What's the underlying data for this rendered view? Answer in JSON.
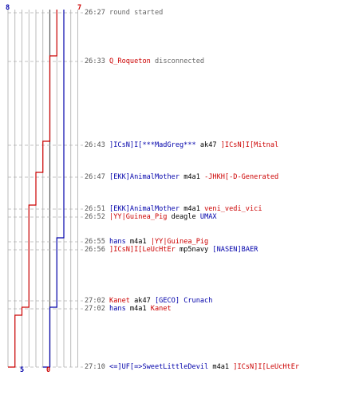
{
  "colors": {
    "team_blue": "#0000aa",
    "team_red": "#cc0000",
    "grid": "#aaaaaa",
    "dash": "#b0b0b0"
  },
  "chart_data": {
    "type": "line",
    "series": [
      {
        "color": "#0000aa",
        "start": 8,
        "end": 5,
        "values_by_event": [
          8,
          8,
          8,
          8,
          8,
          8,
          7,
          7,
          7,
          6,
          6,
          5,
          5
        ]
      },
      {
        "color": "#cc0000",
        "start": 7,
        "end": 0,
        "values_by_event": [
          7,
          6,
          5,
          4,
          3,
          3,
          3,
          3,
          3,
          2,
          1,
          1,
          0
        ]
      }
    ],
    "start_labels": {
      "blue": "8",
      "red": "7"
    },
    "end_labels": {
      "blue": "5",
      "red": "0"
    },
    "events": [
      {
        "time": "26:27",
        "parts": [
          {
            "text": "round started",
            "style": "msg"
          }
        ]
      },
      {
        "time": "26:33",
        "parts": [
          {
            "text": "Q_Roqueton",
            "style": "red"
          },
          {
            "text": " disconnected",
            "style": "msg"
          }
        ]
      },
      {
        "time": "26:43",
        "parts": [
          {
            "text": "]ICsN]I[***MadGreg***",
            "style": "blue"
          },
          {
            "text": " ak47 ",
            "style": "blk"
          },
          {
            "text": "]ICsN]I[Mitnal",
            "style": "red"
          }
        ]
      },
      {
        "time": "26:47",
        "parts": [
          {
            "text": "[EKK]AnimalMother",
            "style": "blue"
          },
          {
            "text": " m4a1 ",
            "style": "blk"
          },
          {
            "text": "-JHKH[-D-Generated",
            "style": "red"
          }
        ]
      },
      {
        "time": "26:51",
        "parts": [
          {
            "text": "[EKK]AnimalMother",
            "style": "blue"
          },
          {
            "text": " m4a1 ",
            "style": "blk"
          },
          {
            "text": "veni_vedi_vici",
            "style": "red"
          }
        ]
      },
      {
        "time": "26:52",
        "parts": [
          {
            "text": "|YY|Guinea_Pig",
            "style": "red"
          },
          {
            "text": " deagle ",
            "style": "blk"
          },
          {
            "text": "UMAX",
            "style": "blue"
          }
        ]
      },
      {
        "time": "26:55",
        "parts": [
          {
            "text": "hans",
            "style": "blue"
          },
          {
            "text": " m4a1 ",
            "style": "blk"
          },
          {
            "text": "|YY|Guinea_Pig",
            "style": "red"
          }
        ]
      },
      {
        "time": "26:56",
        "parts": [
          {
            "text": "]ICsN]I[LeUcHtEr",
            "style": "red"
          },
          {
            "text": " mp5navy ",
            "style": "blk"
          },
          {
            "text": "[NASEN]BAER",
            "style": "blue"
          }
        ]
      },
      {
        "time": "27:02",
        "parts": [
          {
            "text": "Kanet",
            "style": "red"
          },
          {
            "text": " ak47 ",
            "style": "blk"
          },
          {
            "text": "[GECO]",
            "style": "blue"
          },
          {
            "text": " Crunach",
            "style": "blue"
          }
        ]
      },
      {
        "time": "27:02",
        "parts": [
          {
            "text": "hans",
            "style": "blue"
          },
          {
            "text": " m4a1 ",
            "style": "blk"
          },
          {
            "text": "Kanet",
            "style": "red"
          }
        ]
      },
      {
        "time": "27:10",
        "parts": [
          {
            "text": "<=]UF[=>SweetLittleDevil",
            "style": "blue"
          },
          {
            "text": " m4a1 ",
            "style": "blk"
          },
          {
            "text": "]ICsN]I[LeUcHtEr",
            "style": "red"
          }
        ]
      }
    ]
  }
}
